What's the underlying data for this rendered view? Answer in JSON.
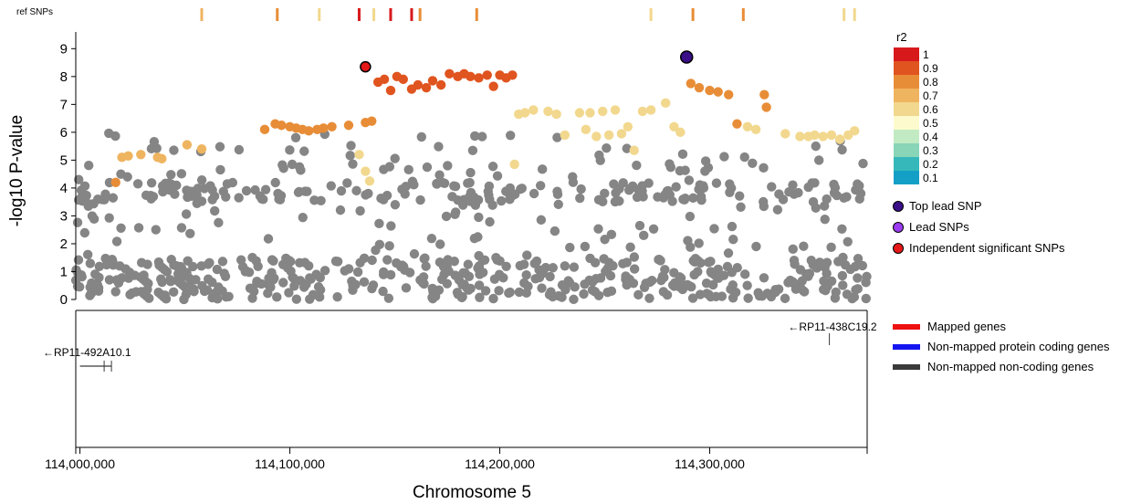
{
  "header": {
    "ref_snps_label": "ref SNPs"
  },
  "chart_data": {
    "type": "scatter",
    "ylabel": "-log10 P-value",
    "xlabel": "Chromosome 5",
    "ylim": [
      0,
      9.6
    ],
    "xlim": [
      113998000,
      114375000
    ],
    "yticks": [
      0,
      1,
      2,
      3,
      4,
      5,
      6,
      7,
      8,
      9
    ],
    "xticks": [
      {
        "value": 114000000,
        "label": "114,000,000"
      },
      {
        "value": 114100000,
        "label": "114,100,000"
      },
      {
        "value": 114200000,
        "label": "114,200,000"
      },
      {
        "value": 114300000,
        "label": "114,300,000"
      }
    ],
    "ref_snps": [
      {
        "pos": 114058000,
        "r2": 0.7
      },
      {
        "pos": 114094000,
        "r2": 0.8
      },
      {
        "pos": 114114000,
        "r2": 0.6
      },
      {
        "pos": 114133000,
        "r2": 1
      },
      {
        "pos": 114140000,
        "r2": 0.6
      },
      {
        "pos": 114148000,
        "r2": 1
      },
      {
        "pos": 114158000,
        "r2": 1
      },
      {
        "pos": 114162000,
        "r2": 0.8
      },
      {
        "pos": 114189000,
        "r2": 0.8
      },
      {
        "pos": 114272000,
        "r2": 0.6
      },
      {
        "pos": 114292000,
        "r2": 0.8
      },
      {
        "pos": 114316000,
        "r2": 0.8
      },
      {
        "pos": 114364000,
        "r2": 0.6
      },
      {
        "pos": 114369000,
        "r2": 0.6
      }
    ],
    "top_lead_snp": {
      "pos": 114289000,
      "p": 8.7
    },
    "independent_significant_snps": [
      {
        "pos": 114136000,
        "p": 8.35
      }
    ],
    "colored_snps": [
      {
        "pos": 114017000,
        "p": 4.2,
        "r2": 0.8
      },
      {
        "pos": 114020000,
        "p": 5.1,
        "r2": 0.7
      },
      {
        "pos": 114023000,
        "p": 5.15,
        "r2": 0.7
      },
      {
        "pos": 114029000,
        "p": 5.2,
        "r2": 0.7
      },
      {
        "pos": 114037000,
        "p": 5.1,
        "r2": 0.7
      },
      {
        "pos": 114039000,
        "p": 5.05,
        "r2": 0.7
      },
      {
        "pos": 114051000,
        "p": 5.55,
        "r2": 0.7
      },
      {
        "pos": 114058000,
        "p": 5.4,
        "r2": 0.7
      },
      {
        "pos": 114088000,
        "p": 6.1,
        "r2": 0.8
      },
      {
        "pos": 114093000,
        "p": 6.3,
        "r2": 0.8
      },
      {
        "pos": 114096000,
        "p": 6.25,
        "r2": 0.8
      },
      {
        "pos": 114100000,
        "p": 6.2,
        "r2": 0.8
      },
      {
        "pos": 114103000,
        "p": 6.15,
        "r2": 0.8
      },
      {
        "pos": 114106000,
        "p": 6.1,
        "r2": 0.8
      },
      {
        "pos": 114109000,
        "p": 6.05,
        "r2": 0.8
      },
      {
        "pos": 114113000,
        "p": 6.1,
        "r2": 0.8
      },
      {
        "pos": 114116000,
        "p": 6.15,
        "r2": 0.8
      },
      {
        "pos": 114120000,
        "p": 6.2,
        "r2": 0.8
      },
      {
        "pos": 114128000,
        "p": 6.25,
        "r2": 0.8
      },
      {
        "pos": 114133000,
        "p": 5.2,
        "r2": 0.6
      },
      {
        "pos": 114136000,
        "p": 4.6,
        "r2": 0.6
      },
      {
        "pos": 114138000,
        "p": 4.25,
        "r2": 0.6
      },
      {
        "pos": 114136000,
        "p": 6.35,
        "r2": 0.8
      },
      {
        "pos": 114139000,
        "p": 6.4,
        "r2": 0.8
      },
      {
        "pos": 114142000,
        "p": 7.8,
        "r2": 0.9
      },
      {
        "pos": 114145000,
        "p": 7.9,
        "r2": 0.9
      },
      {
        "pos": 114148000,
        "p": 7.5,
        "r2": 0.9
      },
      {
        "pos": 114151000,
        "p": 8.0,
        "r2": 0.9
      },
      {
        "pos": 114154000,
        "p": 7.9,
        "r2": 0.9
      },
      {
        "pos": 114158000,
        "p": 7.55,
        "r2": 0.9
      },
      {
        "pos": 114161000,
        "p": 7.7,
        "r2": 0.9
      },
      {
        "pos": 114165000,
        "p": 7.6,
        "r2": 0.9
      },
      {
        "pos": 114168000,
        "p": 7.85,
        "r2": 0.9
      },
      {
        "pos": 114172000,
        "p": 7.7,
        "r2": 0.9
      },
      {
        "pos": 114176000,
        "p": 8.1,
        "r2": 0.9
      },
      {
        "pos": 114180000,
        "p": 8.0,
        "r2": 0.9
      },
      {
        "pos": 114183000,
        "p": 8.1,
        "r2": 0.9
      },
      {
        "pos": 114186000,
        "p": 8.0,
        "r2": 0.9
      },
      {
        "pos": 114190000,
        "p": 7.95,
        "r2": 0.9
      },
      {
        "pos": 114194000,
        "p": 8.05,
        "r2": 0.9
      },
      {
        "pos": 114197000,
        "p": 7.65,
        "r2": 0.9
      },
      {
        "pos": 114200000,
        "p": 8.05,
        "r2": 0.9
      },
      {
        "pos": 114203000,
        "p": 7.95,
        "r2": 0.9
      },
      {
        "pos": 114206000,
        "p": 8.05,
        "r2": 0.9
      },
      {
        "pos": 114207000,
        "p": 4.85,
        "r2": 0.6
      },
      {
        "pos": 114209000,
        "p": 6.65,
        "r2": 0.6
      },
      {
        "pos": 114212000,
        "p": 6.7,
        "r2": 0.6
      },
      {
        "pos": 114216000,
        "p": 6.8,
        "r2": 0.6
      },
      {
        "pos": 114223000,
        "p": 6.75,
        "r2": 0.6
      },
      {
        "pos": 114227000,
        "p": 6.65,
        "r2": 0.6
      },
      {
        "pos": 114231000,
        "p": 5.9,
        "r2": 0.6
      },
      {
        "pos": 114238000,
        "p": 6.7,
        "r2": 0.6
      },
      {
        "pos": 114241000,
        "p": 6.1,
        "r2": 0.6
      },
      {
        "pos": 114243000,
        "p": 6.7,
        "r2": 0.6
      },
      {
        "pos": 114246000,
        "p": 5.85,
        "r2": 0.6
      },
      {
        "pos": 114249000,
        "p": 6.75,
        "r2": 0.6
      },
      {
        "pos": 114252000,
        "p": 5.9,
        "r2": 0.6
      },
      {
        "pos": 114255000,
        "p": 6.8,
        "r2": 0.6
      },
      {
        "pos": 114258000,
        "p": 5.95,
        "r2": 0.6
      },
      {
        "pos": 114261000,
        "p": 6.2,
        "r2": 0.6
      },
      {
        "pos": 114264000,
        "p": 5.35,
        "r2": 0.6
      },
      {
        "pos": 114268000,
        "p": 6.75,
        "r2": 0.6
      },
      {
        "pos": 114272000,
        "p": 6.8,
        "r2": 0.6
      },
      {
        "pos": 114279000,
        "p": 7.05,
        "r2": 0.6
      },
      {
        "pos": 114283000,
        "p": 6.2,
        "r2": 0.6
      },
      {
        "pos": 114286000,
        "p": 6.0,
        "r2": 0.6
      },
      {
        "pos": 114291000,
        "p": 7.75,
        "r2": 0.8
      },
      {
        "pos": 114295000,
        "p": 7.6,
        "r2": 0.8
      },
      {
        "pos": 114300000,
        "p": 7.5,
        "r2": 0.8
      },
      {
        "pos": 114304000,
        "p": 7.45,
        "r2": 0.8
      },
      {
        "pos": 114309000,
        "p": 7.35,
        "r2": 0.8
      },
      {
        "pos": 114313000,
        "p": 6.3,
        "r2": 0.8
      },
      {
        "pos": 114318000,
        "p": 6.2,
        "r2": 0.6
      },
      {
        "pos": 114322000,
        "p": 6.1,
        "r2": 0.6
      },
      {
        "pos": 114326000,
        "p": 7.35,
        "r2": 0.8
      },
      {
        "pos": 114327000,
        "p": 6.9,
        "r2": 0.8
      },
      {
        "pos": 114336000,
        "p": 5.95,
        "r2": 0.6
      },
      {
        "pos": 114343000,
        "p": 5.85,
        "r2": 0.6
      },
      {
        "pos": 114347000,
        "p": 5.85,
        "r2": 0.6
      },
      {
        "pos": 114350000,
        "p": 5.9,
        "r2": 0.6
      },
      {
        "pos": 114354000,
        "p": 5.85,
        "r2": 0.6
      },
      {
        "pos": 114358000,
        "p": 5.9,
        "r2": 0.6
      },
      {
        "pos": 114362000,
        "p": 5.75,
        "r2": 0.6
      },
      {
        "pos": 114366000,
        "p": 5.9,
        "r2": 0.6
      },
      {
        "pos": 114369000,
        "p": 6.05,
        "r2": 0.6
      }
    ],
    "background_snps_note_free": true,
    "genes": [
      {
        "name": "RP11-492A10.1",
        "start": 114000000,
        "end": 114015000,
        "strand": "-",
        "type": "non-mapped non-coding",
        "label": "←RP11-492A10.1"
      },
      {
        "name": "RP11-438C19.2",
        "start": 114357000,
        "end": 114358000,
        "strand": "-",
        "type": "non-mapped non-coding",
        "label": "←RP11-438C19.2"
      }
    ],
    "r2_legend": {
      "title": "r2",
      "entries": [
        {
          "label": "1",
          "color": "#d7191c"
        },
        {
          "label": "0.9",
          "color": "#e0541f"
        },
        {
          "label": "0.8",
          "color": "#e88d37"
        },
        {
          "label": "0.7",
          "color": "#efb460"
        },
        {
          "label": "0.6",
          "color": "#f2d88e"
        },
        {
          "label": "0.5",
          "color": "#fdfbcd"
        },
        {
          "label": "0.4",
          "color": "#c2ebc4"
        },
        {
          "label": "0.3",
          "color": "#88d5b8"
        },
        {
          "label": "0.2",
          "color": "#36b8ba"
        },
        {
          "label": "0.1",
          "color": "#14a0c6"
        }
      ]
    },
    "snp_legend": [
      {
        "label": "Top lead SNP",
        "color": "#3b0f88"
      },
      {
        "label": "Lead SNPs",
        "color": "#9b3cf0"
      },
      {
        "label": "Independent significant SNPs",
        "color": "#e51919"
      }
    ],
    "gene_legend": [
      {
        "label": "Mapped genes",
        "color": "#ee1111"
      },
      {
        "label": "Non-mapped protein coding genes",
        "color": "#1515f0"
      },
      {
        "label": "Non-mapped non-coding genes",
        "color": "#3a3a3a"
      }
    ],
    "colors": {
      "background_snp": "#858585",
      "axis": "#000000"
    }
  }
}
